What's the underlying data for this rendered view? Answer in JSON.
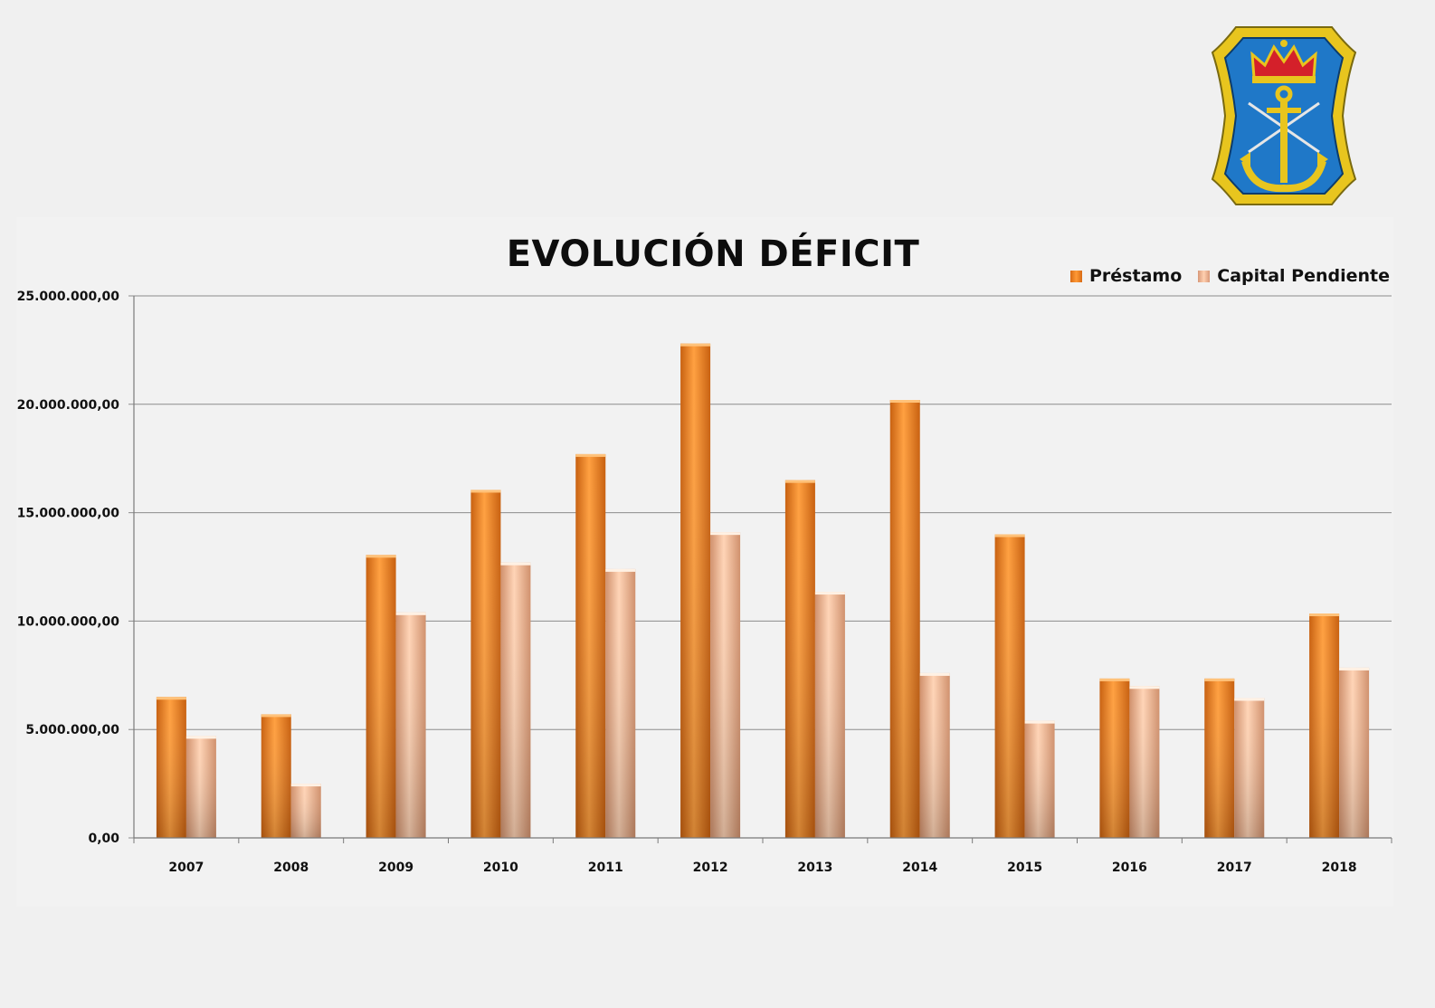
{
  "colors": {
    "prestamo": "#f28a2a",
    "capital_pendiente": "#f5b894",
    "gridline": "#8c8c8c",
    "background": "#f0f0f0"
  },
  "logo": {
    "icon": "naval-anchor-crest-icon"
  },
  "chart_data": {
    "type": "bar",
    "title": "EVOLUCIÓN DÉFICIT",
    "xlabel": "",
    "ylabel": "",
    "categories": [
      "2007",
      "2008",
      "2009",
      "2010",
      "2011",
      "2012",
      "2013",
      "2014",
      "2015",
      "2016",
      "2017",
      "2018"
    ],
    "series": [
      {
        "name": "Préstamo",
        "values": [
          6500000,
          5700000,
          13050000,
          16050000,
          17700000,
          22800000,
          16500000,
          20200000,
          14000000,
          7350000,
          7350000,
          10350000
        ]
      },
      {
        "name": "Capital Pendiente",
        "values": [
          4700000,
          2500000,
          10400000,
          12700000,
          12400000,
          14100000,
          11350000,
          7600000,
          5400000,
          7000000,
          6450000,
          7850000
        ]
      }
    ],
    "ylim": [
      0,
      25000000
    ],
    "yticks": [
      0,
      5000000,
      10000000,
      15000000,
      20000000,
      25000000
    ],
    "ytick_labels": [
      "0,00",
      "5.000.000,00",
      "10.000.000,00",
      "15.000.000,00",
      "20.000.000,00",
      "25.000.000,00"
    ],
    "grid": true,
    "legend_position": "top-right"
  }
}
